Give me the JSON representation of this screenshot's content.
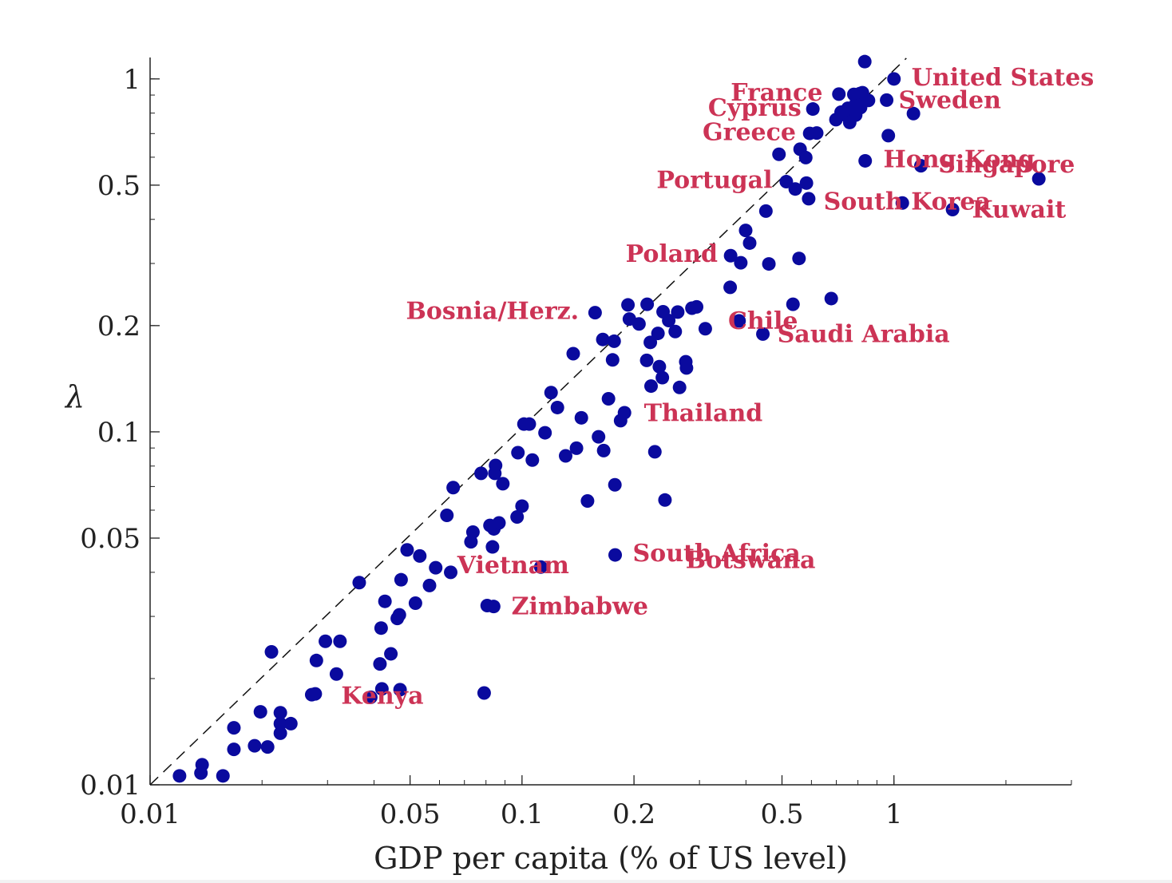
{
  "chart_data": {
    "type": "scatter",
    "title": "",
    "xlabel": "GDP per capita (% of US level)",
    "ylabel": "λ",
    "x_scale": "log",
    "y_scale": "log",
    "xlim": [
      0.01,
      3.0
    ],
    "ylim": [
      0.01,
      1.15
    ],
    "x_ticks": [
      {
        "value": 0.01,
        "label": "0.01"
      },
      {
        "value": 0.05,
        "label": "0.05"
      },
      {
        "value": 0.1,
        "label": "0.1"
      },
      {
        "value": 0.2,
        "label": "0.2"
      },
      {
        "value": 0.5,
        "label": "0.5"
      },
      {
        "value": 1,
        "label": "1"
      }
    ],
    "y_ticks": [
      {
        "value": 0.01,
        "label": "0.01"
      },
      {
        "value": 0.05,
        "label": "0.05"
      },
      {
        "value": 0.1,
        "label": "0.1"
      },
      {
        "value": 0.2,
        "label": "0.2"
      },
      {
        "value": 0.5,
        "label": "0.5"
      },
      {
        "value": 1,
        "label": "1"
      }
    ],
    "reference_line": "y = x (45-degree line, dashed)",
    "marker_color": "#0a0a9e",
    "label_color": "#cc3355",
    "points": [
      [
        0.012,
        0.0106
      ],
      [
        0.0137,
        0.0108
      ],
      [
        0.0138,
        0.0114
      ],
      [
        0.0157,
        0.0106
      ],
      [
        0.0168,
        0.0126
      ],
      [
        0.0168,
        0.0145
      ],
      [
        0.0191,
        0.0129
      ],
      [
        0.0198,
        0.0161
      ],
      [
        0.0207,
        0.0128
      ],
      [
        0.0212,
        0.0238
      ],
      [
        0.0224,
        0.016
      ],
      [
        0.0224,
        0.0149
      ],
      [
        0.0224,
        0.014
      ],
      [
        0.0239,
        0.0149
      ],
      [
        0.0272,
        0.018
      ],
      [
        0.0278,
        0.0181
      ],
      [
        0.028,
        0.0225
      ],
      [
        0.0296,
        0.0255
      ],
      [
        0.0317,
        0.0206
      ],
      [
        0.0324,
        0.0255
      ],
      [
        0.0365,
        0.0374
      ],
      [
        0.0392,
        0.0177
      ],
      [
        0.0415,
        0.022
      ],
      [
        0.0418,
        0.0278
      ],
      [
        0.042,
        0.0187
      ],
      [
        0.0428,
        0.0331
      ],
      [
        0.0444,
        0.0235
      ],
      [
        0.0462,
        0.0296
      ],
      [
        0.0468,
        0.0303
      ],
      [
        0.047,
        0.0186
      ],
      [
        0.0473,
        0.0381
      ],
      [
        0.0491,
        0.0463
      ],
      [
        0.0517,
        0.0327
      ],
      [
        0.0531,
        0.0445
      ],
      [
        0.0564,
        0.0367
      ],
      [
        0.0586,
        0.0412
      ],
      [
        0.0628,
        0.058
      ],
      [
        0.0643,
        0.04
      ],
      [
        0.0653,
        0.0695
      ],
      [
        0.0729,
        0.0488
      ],
      [
        0.0738,
        0.052
      ],
      [
        0.0776,
        0.0763
      ],
      [
        0.0791,
        0.0182
      ],
      [
        0.0806,
        0.0322
      ],
      [
        0.082,
        0.0543
      ],
      [
        0.0833,
        0.0472
      ],
      [
        0.0839,
        0.032
      ],
      [
        0.084,
        0.0531
      ],
      [
        0.0845,
        0.0763
      ],
      [
        0.0849,
        0.0803
      ],
      [
        0.0867,
        0.0552
      ],
      [
        0.0888,
        0.0713
      ],
      [
        0.097,
        0.0574
      ],
      [
        0.0975,
        0.0873
      ],
      [
        0.1,
        0.0616
      ],
      [
        0.1012,
        0.1052
      ],
      [
        0.1046,
        0.1052
      ],
      [
        0.1066,
        0.0832
      ],
      [
        0.1123,
        0.0414
      ],
      [
        0.1153,
        0.0994
      ],
      [
        0.1197,
        0.1292
      ],
      [
        0.1245,
        0.1172
      ],
      [
        0.131,
        0.0855
      ],
      [
        0.1373,
        0.1665
      ],
      [
        0.1401,
        0.0899
      ],
      [
        0.1444,
        0.1096
      ],
      [
        0.15,
        0.0637
      ],
      [
        0.1572,
        0.2176
      ],
      [
        0.1606,
        0.0968
      ],
      [
        0.1649,
        0.1827
      ],
      [
        0.1658,
        0.0885
      ],
      [
        0.1708,
        0.1241
      ],
      [
        0.1752,
        0.1599
      ],
      [
        0.1769,
        0.1806
      ],
      [
        0.1777,
        0.0708
      ],
      [
        0.178,
        0.0448
      ],
      [
        0.1841,
        0.1076
      ],
      [
        0.1886,
        0.1133
      ],
      [
        0.1927,
        0.2289
      ],
      [
        0.1944,
        0.2087
      ],
      [
        0.2063,
        0.2022
      ],
      [
        0.2164,
        0.1594
      ],
      [
        0.217,
        0.2299
      ],
      [
        0.2213,
        0.1793
      ],
      [
        0.2223,
        0.1348
      ],
      [
        0.2276,
        0.0878
      ],
      [
        0.232,
        0.1901
      ],
      [
        0.234,
        0.153
      ],
      [
        0.2384,
        0.1424
      ],
      [
        0.2395,
        0.2189
      ],
      [
        0.2423,
        0.0641
      ],
      [
        0.248,
        0.2067
      ],
      [
        0.2582,
        0.1924
      ],
      [
        0.2622,
        0.2185
      ],
      [
        0.2652,
        0.1336
      ],
      [
        0.2756,
        0.158
      ],
      [
        0.2768,
        0.1517
      ],
      [
        0.2863,
        0.2241
      ],
      [
        0.2947,
        0.226
      ],
      [
        0.311,
        0.196
      ],
      [
        0.3628,
        0.2567
      ],
      [
        0.3638,
        0.3156
      ],
      [
        0.3833,
        0.2063
      ],
      [
        0.3874,
        0.3014
      ],
      [
        0.3993,
        0.3722
      ],
      [
        0.4093,
        0.3427
      ],
      [
        0.4442,
        0.1893
      ],
      [
        0.4526,
        0.4222
      ],
      [
        0.461,
        0.2991
      ],
      [
        0.4908,
        0.6116
      ],
      [
        0.5135,
        0.5115
      ],
      [
        0.5352,
        0.2299
      ],
      [
        0.5428,
        0.4877
      ],
      [
        0.5556,
        0.31
      ],
      [
        0.5593,
        0.6323
      ],
      [
        0.5793,
        0.5984
      ],
      [
        0.5817,
        0.5068
      ],
      [
        0.5898,
        0.4577
      ],
      [
        0.5936,
        0.7009
      ],
      [
        0.6053,
        0.8216
      ],
      [
        0.6199,
        0.7025
      ],
      [
        0.6783,
        0.2386
      ],
      [
        0.6983,
        0.7664
      ],
      [
        0.7111,
        0.9057
      ],
      [
        0.7209,
        0.8048
      ],
      [
        0.7426,
        0.7889
      ],
      [
        0.752,
        0.8258
      ],
      [
        0.7605,
        0.7525
      ],
      [
        0.7801,
        0.9038
      ],
      [
        0.7891,
        0.79
      ],
      [
        0.7917,
        0.8556
      ],
      [
        0.8099,
        0.9087
      ],
      [
        0.8132,
        0.8292
      ],
      [
        0.8229,
        0.914
      ],
      [
        0.8347,
        1.1194
      ],
      [
        0.8369,
        0.586
      ],
      [
        0.8541,
        0.869
      ],
      [
        0.9558,
        0.871
      ],
      [
        0.9658,
        0.6907
      ],
      [
        1.0,
        1.0
      ],
      [
        1.0533,
        0.4451
      ],
      [
        1.1283,
        0.7974
      ],
      [
        1.1817,
        0.5673
      ],
      [
        1.4374,
        0.4263
      ],
      [
        2.4518,
        0.5211
      ]
    ],
    "annotations": [
      {
        "text": "United States",
        "x": 1.0,
        "y": 1.0
      },
      {
        "text": "France",
        "x": 0.71,
        "y": 0.905
      },
      {
        "text": "Sweden",
        "x": 0.96,
        "y": 0.87
      },
      {
        "text": "Cyprus",
        "x": 0.61,
        "y": 0.82
      },
      {
        "text": "Greece",
        "x": 0.59,
        "y": 0.7
      },
      {
        "text": "Hong Kong",
        "x": 0.84,
        "y": 0.586
      },
      {
        "text": "Singapore",
        "x": 1.18,
        "y": 0.567
      },
      {
        "text": "Portugal",
        "x": 0.51,
        "y": 0.512
      },
      {
        "text": "South Korea",
        "x": 1.05,
        "y": 0.445
      },
      {
        "text": "Kuwait",
        "x": 1.44,
        "y": 0.426
      },
      {
        "text": "Poland",
        "x": 0.36,
        "y": 0.316
      },
      {
        "text": "Bosnia/Herz.",
        "x": 0.157,
        "y": 0.218
      },
      {
        "text": "Chile",
        "x": 0.38,
        "y": 0.206
      },
      {
        "text": "Saudi Arabia",
        "x": 0.44,
        "y": 0.189
      },
      {
        "text": "Thailand",
        "x": 0.189,
        "y": 0.113
      },
      {
        "text": "South Africa",
        "x": 0.178,
        "y": 0.0448
      },
      {
        "text": "Botswana",
        "x": 0.247,
        "y": 0.0429
      },
      {
        "text": "Vietnam",
        "x": 0.112,
        "y": 0.0414
      },
      {
        "text": "Zimbabwe",
        "x": 0.084,
        "y": 0.032
      },
      {
        "text": "Kenya",
        "x": 0.039,
        "y": 0.0177
      }
    ],
    "grid": false,
    "legend": "none"
  }
}
